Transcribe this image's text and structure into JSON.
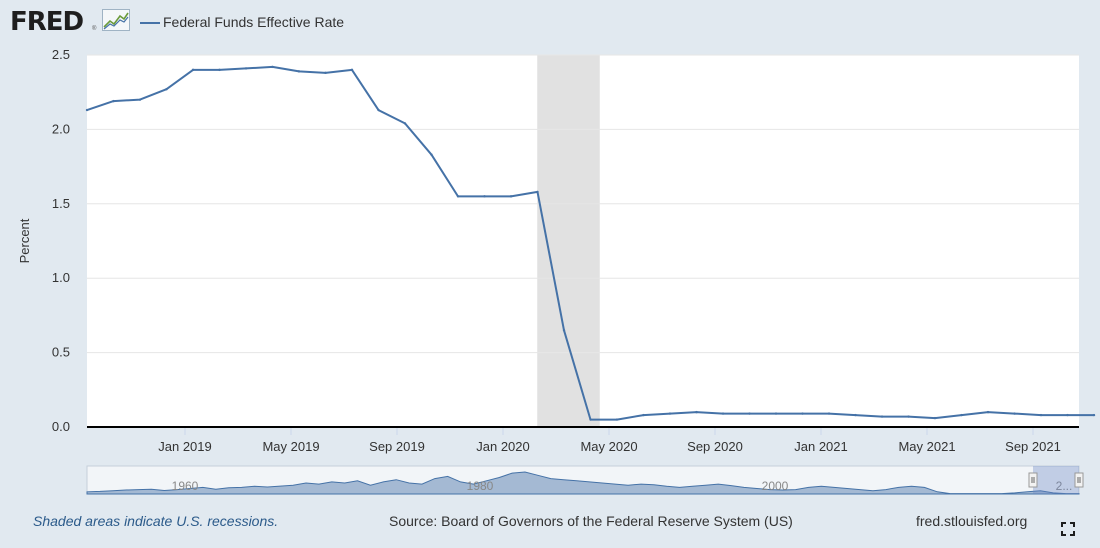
{
  "header": {
    "logo_text": "FRED",
    "logo_mark": "®",
    "logo_icon": "chart-line-icon",
    "legend_label": "Federal Funds Effective Rate",
    "legend_color": "#4572a7"
  },
  "chart_data": {
    "type": "line",
    "title": "",
    "xlabel": "",
    "ylabel": "Percent",
    "ylim": [
      0,
      2.5
    ],
    "yticks": [
      "0.0",
      "0.5",
      "1.0",
      "1.5",
      "2.0",
      "2.5"
    ],
    "xticks": [
      "Jan 2019",
      "May 2019",
      "Sep 2019",
      "Jan 2020",
      "May 2020",
      "Sep 2020",
      "Jan 2021",
      "May 2021",
      "Sep 2021"
    ],
    "grid": true,
    "legend_position": "top-left",
    "series": [
      {
        "name": "Federal Funds Effective Rate",
        "color": "#4572a7",
        "x": [
          "2018-09",
          "2018-10",
          "2018-11",
          "2018-12",
          "2019-01",
          "2019-02",
          "2019-03",
          "2019-04",
          "2019-05",
          "2019-06",
          "2019-07",
          "2019-08",
          "2019-09",
          "2019-10",
          "2019-11",
          "2019-12",
          "2020-01",
          "2020-02",
          "2020-03",
          "2020-04",
          "2020-05",
          "2020-06",
          "2020-07",
          "2020-08",
          "2020-09",
          "2020-10",
          "2020-11",
          "2020-12",
          "2021-01",
          "2021-02",
          "2021-03",
          "2021-04",
          "2021-05",
          "2021-06",
          "2021-07",
          "2021-08",
          "2021-09",
          "2021-10",
          "2021-11"
        ],
        "values": [
          2.13,
          2.19,
          2.2,
          2.27,
          2.4,
          2.4,
          2.41,
          2.42,
          2.39,
          2.38,
          2.4,
          2.13,
          2.04,
          1.83,
          1.55,
          1.55,
          1.55,
          1.58,
          0.65,
          0.05,
          0.05,
          0.08,
          0.09,
          0.1,
          0.09,
          0.09,
          0.09,
          0.09,
          0.09,
          0.08,
          0.07,
          0.07,
          0.06,
          0.08,
          0.1,
          0.09,
          0.08,
          0.08,
          0.08
        ]
      }
    ],
    "recessions": [
      {
        "start": "2020-02",
        "end": "2020-04"
      }
    ],
    "navigator": {
      "labels": [
        "1960",
        "1980",
        "2000",
        "2..."
      ]
    }
  },
  "footer": {
    "recession_note": "Shaded areas indicate U.S. recessions.",
    "source": "Source: Board of Governors of the Federal Reserve System (US)",
    "url": "fred.stlouisfed.org",
    "fullscreen_icon": "fullscreen-icon"
  }
}
